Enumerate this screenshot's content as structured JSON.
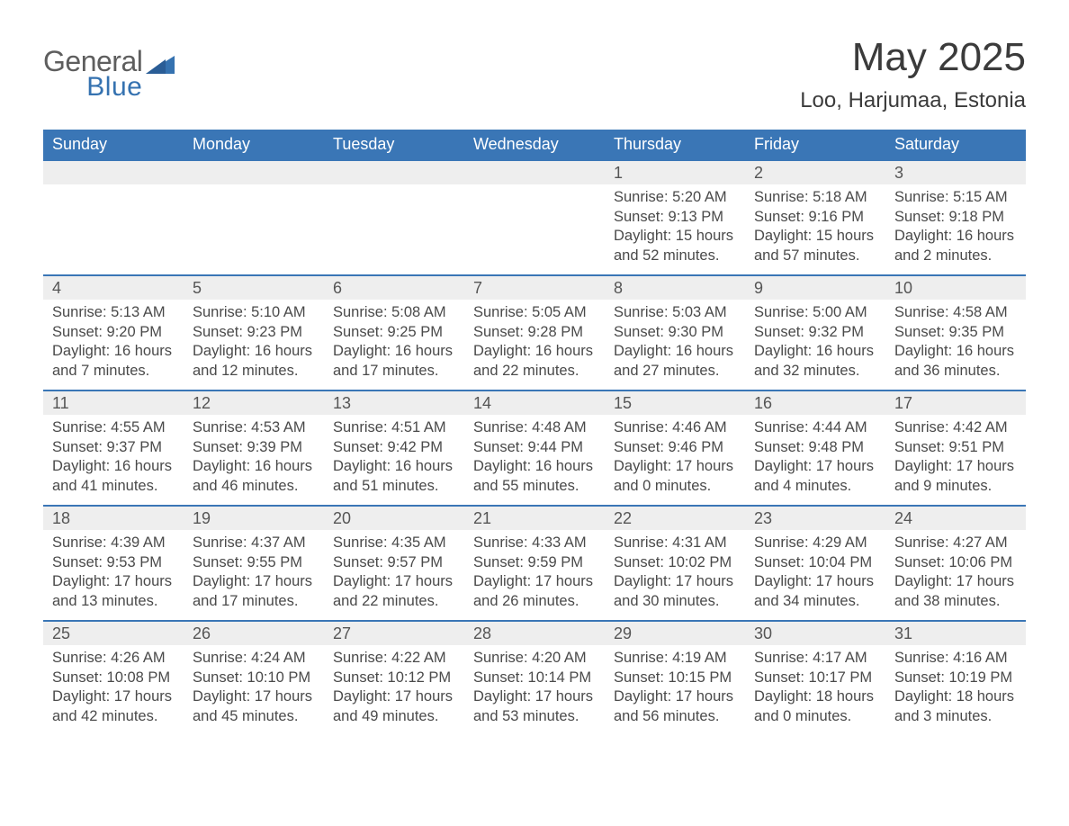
{
  "brand": {
    "general": "General",
    "blue": "Blue"
  },
  "colors": {
    "header_bg": "#3a76b6",
    "header_text": "#ffffff",
    "strip_bg": "#eeeeee",
    "rule": "#3a76b6",
    "body_text": "#4a4a4a",
    "title_text": "#3b3b3b",
    "logo_general": "#5e5e5e",
    "logo_blue": "#3572b0",
    "page_bg": "#ffffff"
  },
  "title": "May 2025",
  "subtitle": "Loo, Harjumaa, Estonia",
  "dow": [
    "Sunday",
    "Monday",
    "Tuesday",
    "Wednesday",
    "Thursday",
    "Friday",
    "Saturday"
  ],
  "weeks": [
    [
      null,
      null,
      null,
      null,
      {
        "n": "1",
        "sr": "Sunrise: 5:20 AM",
        "ss": "Sunset: 9:13 PM",
        "d1": "Daylight: 15 hours",
        "d2": "and 52 minutes."
      },
      {
        "n": "2",
        "sr": "Sunrise: 5:18 AM",
        "ss": "Sunset: 9:16 PM",
        "d1": "Daylight: 15 hours",
        "d2": "and 57 minutes."
      },
      {
        "n": "3",
        "sr": "Sunrise: 5:15 AM",
        "ss": "Sunset: 9:18 PM",
        "d1": "Daylight: 16 hours",
        "d2": "and 2 minutes."
      }
    ],
    [
      {
        "n": "4",
        "sr": "Sunrise: 5:13 AM",
        "ss": "Sunset: 9:20 PM",
        "d1": "Daylight: 16 hours",
        "d2": "and 7 minutes."
      },
      {
        "n": "5",
        "sr": "Sunrise: 5:10 AM",
        "ss": "Sunset: 9:23 PM",
        "d1": "Daylight: 16 hours",
        "d2": "and 12 minutes."
      },
      {
        "n": "6",
        "sr": "Sunrise: 5:08 AM",
        "ss": "Sunset: 9:25 PM",
        "d1": "Daylight: 16 hours",
        "d2": "and 17 minutes."
      },
      {
        "n": "7",
        "sr": "Sunrise: 5:05 AM",
        "ss": "Sunset: 9:28 PM",
        "d1": "Daylight: 16 hours",
        "d2": "and 22 minutes."
      },
      {
        "n": "8",
        "sr": "Sunrise: 5:03 AM",
        "ss": "Sunset: 9:30 PM",
        "d1": "Daylight: 16 hours",
        "d2": "and 27 minutes."
      },
      {
        "n": "9",
        "sr": "Sunrise: 5:00 AM",
        "ss": "Sunset: 9:32 PM",
        "d1": "Daylight: 16 hours",
        "d2": "and 32 minutes."
      },
      {
        "n": "10",
        "sr": "Sunrise: 4:58 AM",
        "ss": "Sunset: 9:35 PM",
        "d1": "Daylight: 16 hours",
        "d2": "and 36 minutes."
      }
    ],
    [
      {
        "n": "11",
        "sr": "Sunrise: 4:55 AM",
        "ss": "Sunset: 9:37 PM",
        "d1": "Daylight: 16 hours",
        "d2": "and 41 minutes."
      },
      {
        "n": "12",
        "sr": "Sunrise: 4:53 AM",
        "ss": "Sunset: 9:39 PM",
        "d1": "Daylight: 16 hours",
        "d2": "and 46 minutes."
      },
      {
        "n": "13",
        "sr": "Sunrise: 4:51 AM",
        "ss": "Sunset: 9:42 PM",
        "d1": "Daylight: 16 hours",
        "d2": "and 51 minutes."
      },
      {
        "n": "14",
        "sr": "Sunrise: 4:48 AM",
        "ss": "Sunset: 9:44 PM",
        "d1": "Daylight: 16 hours",
        "d2": "and 55 minutes."
      },
      {
        "n": "15",
        "sr": "Sunrise: 4:46 AM",
        "ss": "Sunset: 9:46 PM",
        "d1": "Daylight: 17 hours",
        "d2": "and 0 minutes."
      },
      {
        "n": "16",
        "sr": "Sunrise: 4:44 AM",
        "ss": "Sunset: 9:48 PM",
        "d1": "Daylight: 17 hours",
        "d2": "and 4 minutes."
      },
      {
        "n": "17",
        "sr": "Sunrise: 4:42 AM",
        "ss": "Sunset: 9:51 PM",
        "d1": "Daylight: 17 hours",
        "d2": "and 9 minutes."
      }
    ],
    [
      {
        "n": "18",
        "sr": "Sunrise: 4:39 AM",
        "ss": "Sunset: 9:53 PM",
        "d1": "Daylight: 17 hours",
        "d2": "and 13 minutes."
      },
      {
        "n": "19",
        "sr": "Sunrise: 4:37 AM",
        "ss": "Sunset: 9:55 PM",
        "d1": "Daylight: 17 hours",
        "d2": "and 17 minutes."
      },
      {
        "n": "20",
        "sr": "Sunrise: 4:35 AM",
        "ss": "Sunset: 9:57 PM",
        "d1": "Daylight: 17 hours",
        "d2": "and 22 minutes."
      },
      {
        "n": "21",
        "sr": "Sunrise: 4:33 AM",
        "ss": "Sunset: 9:59 PM",
        "d1": "Daylight: 17 hours",
        "d2": "and 26 minutes."
      },
      {
        "n": "22",
        "sr": "Sunrise: 4:31 AM",
        "ss": "Sunset: 10:02 PM",
        "d1": "Daylight: 17 hours",
        "d2": "and 30 minutes."
      },
      {
        "n": "23",
        "sr": "Sunrise: 4:29 AM",
        "ss": "Sunset: 10:04 PM",
        "d1": "Daylight: 17 hours",
        "d2": "and 34 minutes."
      },
      {
        "n": "24",
        "sr": "Sunrise: 4:27 AM",
        "ss": "Sunset: 10:06 PM",
        "d1": "Daylight: 17 hours",
        "d2": "and 38 minutes."
      }
    ],
    [
      {
        "n": "25",
        "sr": "Sunrise: 4:26 AM",
        "ss": "Sunset: 10:08 PM",
        "d1": "Daylight: 17 hours",
        "d2": "and 42 minutes."
      },
      {
        "n": "26",
        "sr": "Sunrise: 4:24 AM",
        "ss": "Sunset: 10:10 PM",
        "d1": "Daylight: 17 hours",
        "d2": "and 45 minutes."
      },
      {
        "n": "27",
        "sr": "Sunrise: 4:22 AM",
        "ss": "Sunset: 10:12 PM",
        "d1": "Daylight: 17 hours",
        "d2": "and 49 minutes."
      },
      {
        "n": "28",
        "sr": "Sunrise: 4:20 AM",
        "ss": "Sunset: 10:14 PM",
        "d1": "Daylight: 17 hours",
        "d2": "and 53 minutes."
      },
      {
        "n": "29",
        "sr": "Sunrise: 4:19 AM",
        "ss": "Sunset: 10:15 PM",
        "d1": "Daylight: 17 hours",
        "d2": "and 56 minutes."
      },
      {
        "n": "30",
        "sr": "Sunrise: 4:17 AM",
        "ss": "Sunset: 10:17 PM",
        "d1": "Daylight: 18 hours",
        "d2": "and 0 minutes."
      },
      {
        "n": "31",
        "sr": "Sunrise: 4:16 AM",
        "ss": "Sunset: 10:19 PM",
        "d1": "Daylight: 18 hours",
        "d2": "and 3 minutes."
      }
    ]
  ]
}
